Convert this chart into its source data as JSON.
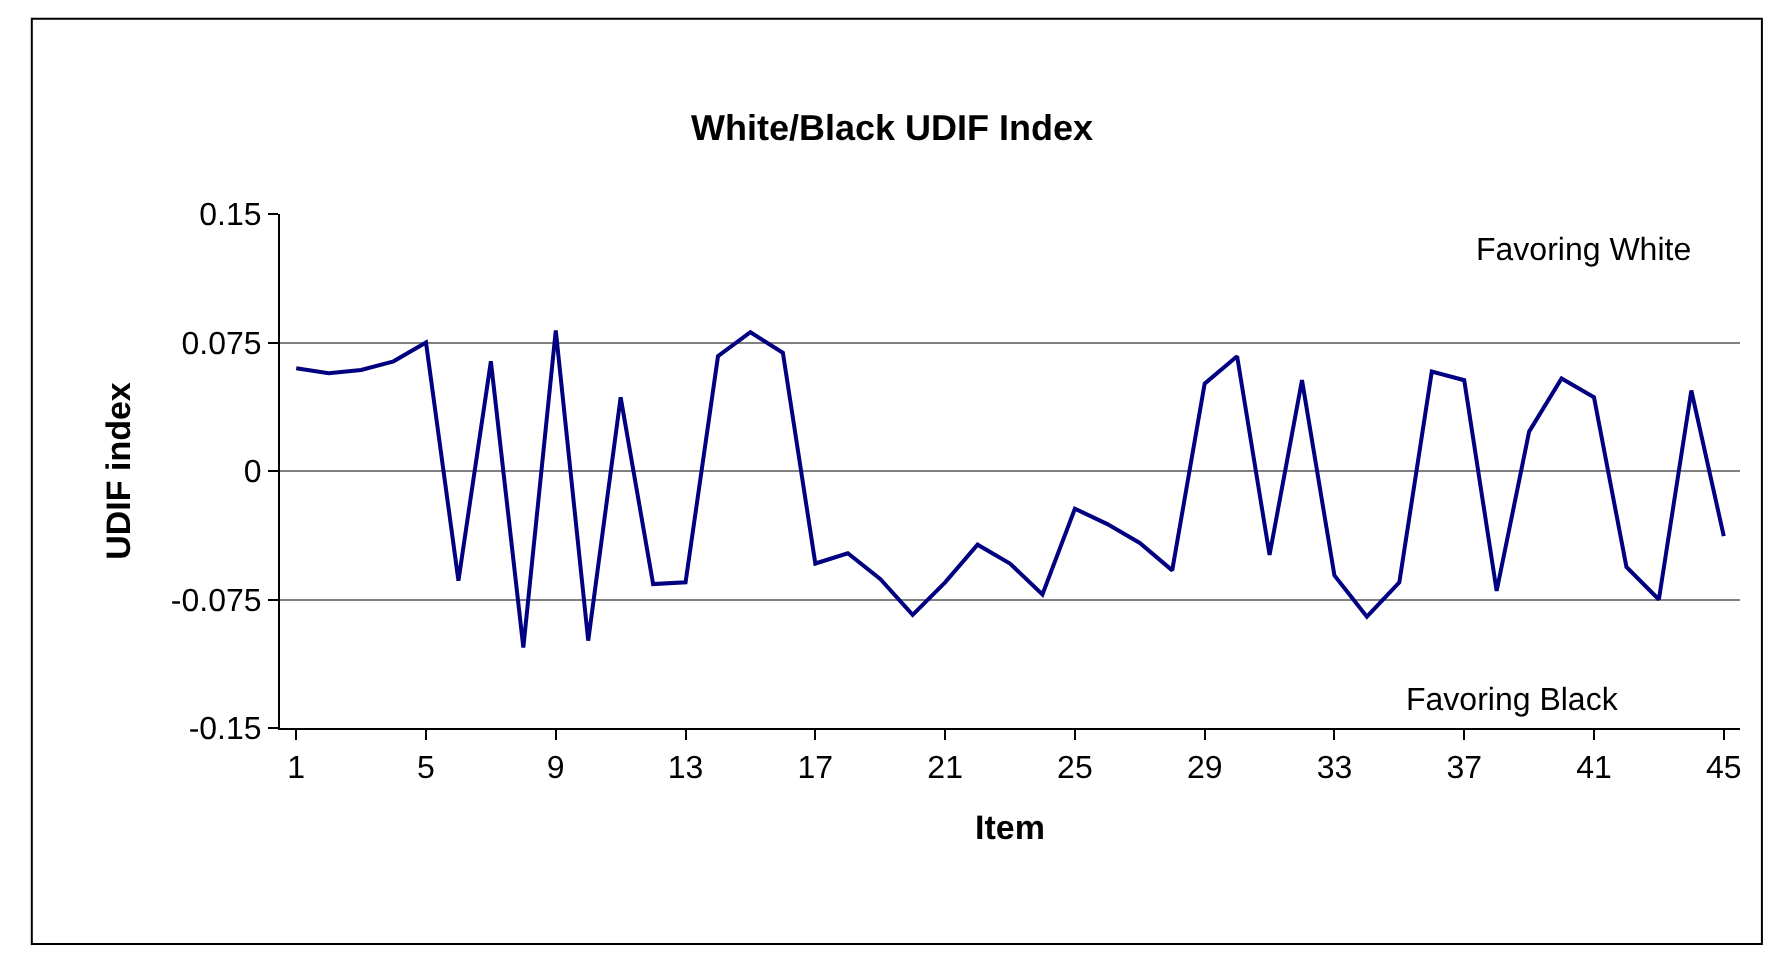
{
  "chart_data": {
    "type": "line",
    "title": "White/Black UDIF Index",
    "xlabel": "Item",
    "ylabel": "UDIF index",
    "x": [
      1,
      2,
      3,
      4,
      5,
      6,
      7,
      8,
      9,
      10,
      11,
      12,
      13,
      14,
      15,
      16,
      17,
      18,
      19,
      20,
      21,
      22,
      23,
      24,
      25,
      26,
      27,
      28,
      29,
      30,
      31,
      32,
      33,
      34,
      35,
      36,
      37,
      38,
      39,
      40,
      41,
      42,
      43,
      44,
      45
    ],
    "series": [
      {
        "color": "#000080",
        "values": [
          0.06,
          0.057,
          0.059,
          0.064,
          0.075,
          -0.064,
          0.064,
          -0.103,
          0.082,
          -0.099,
          0.043,
          -0.066,
          -0.065,
          0.067,
          0.081,
          0.069,
          -0.054,
          -0.048,
          -0.063,
          -0.084,
          -0.065,
          -0.043,
          -0.054,
          -0.072,
          -0.022,
          -0.031,
          -0.042,
          -0.058,
          0.051,
          0.067,
          -0.049,
          0.053,
          -0.061,
          -0.085,
          -0.065,
          0.058,
          0.053,
          -0.07,
          0.023,
          0.054,
          0.043,
          -0.056,
          -0.075,
          0.047,
          -0.038
        ]
      }
    ],
    "xlim": [
      0.5,
      45.5
    ],
    "xticks": [
      1,
      5,
      9,
      13,
      17,
      21,
      25,
      29,
      33,
      37,
      41,
      45
    ],
    "ylim": [
      -0.15,
      0.15
    ],
    "yticks": [
      -0.15,
      -0.075,
      0,
      0.075,
      0.15
    ],
    "grid": "y",
    "marker": "none",
    "line_style": "solid",
    "annotations": [
      "Favoring White",
      "Favoring Black"
    ]
  }
}
